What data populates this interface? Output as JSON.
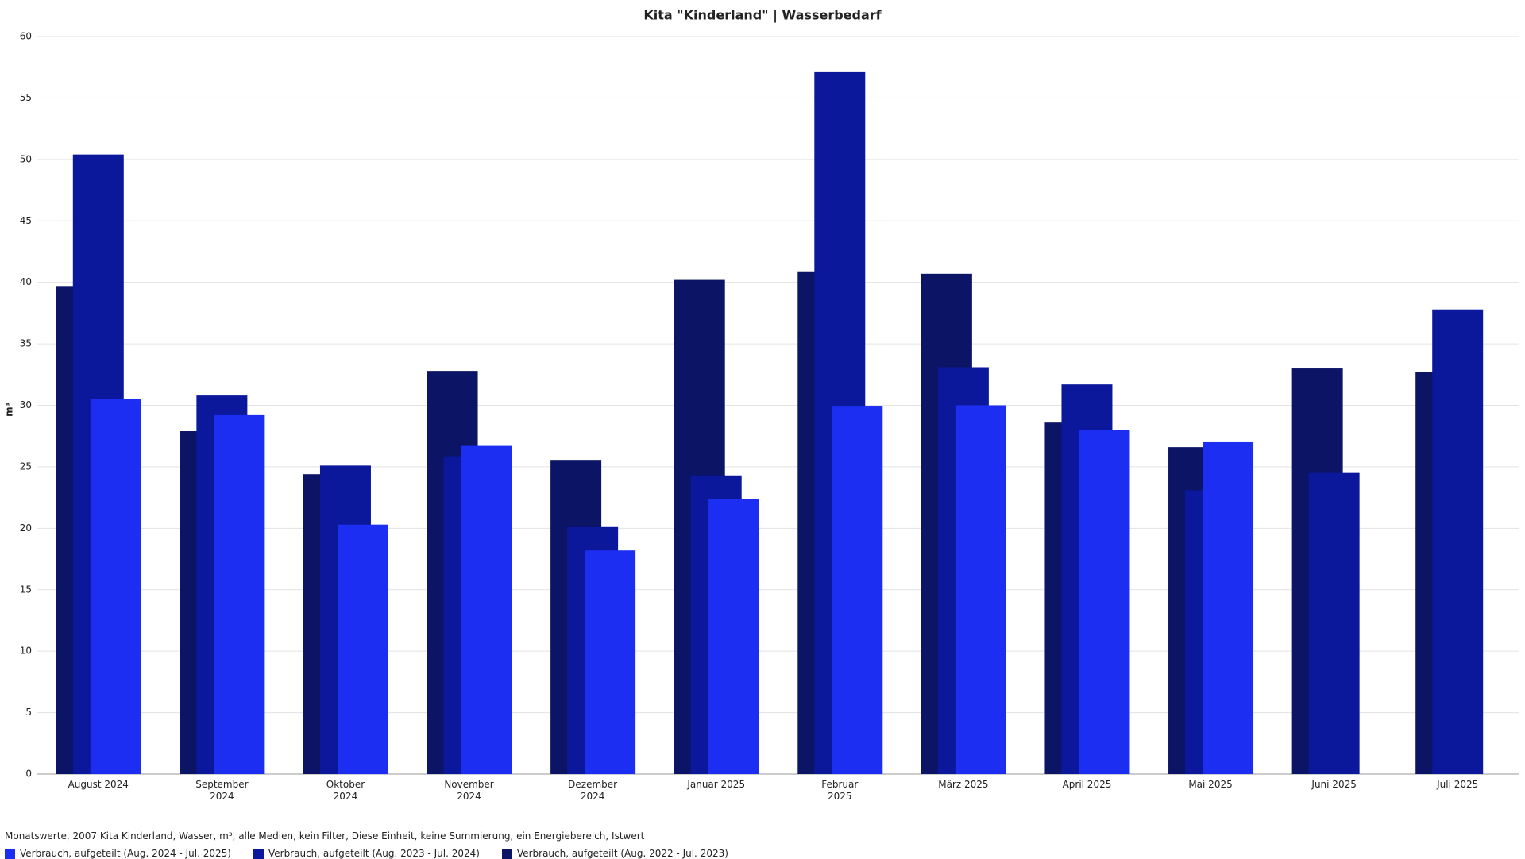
{
  "chart_data": {
    "type": "bar",
    "title": "Kita \"Kinderland\" | Wasserbedarf",
    "y_label": "m³",
    "note": "Monatswerte, 2007 Kita Kinderland, Wasser, m³, alle Medien, kein Filter, Diese Einheit, keine Summierung, ein Energiebereich, Istwert",
    "categories": [
      "August 2024",
      "September 2024",
      "Oktober 2024",
      "November 2024",
      "Dezember 2024",
      "Januar 2025",
      "Februar 2025",
      "März 2025",
      "April 2025",
      "Mai 2025",
      "Juni 2025",
      "Juli 2025"
    ],
    "series": [
      {
        "name": "Verbrauch, aufgeteilt (Aug. 2024 - Jul. 2025)",
        "color": "#1b2ef2",
        "values": [
          30.5,
          29.2,
          20.3,
          26.7,
          18.2,
          22.4,
          29.9,
          30.0,
          28.0,
          27.0,
          null,
          null
        ]
      },
      {
        "name": "Verbrauch, aufgeteilt (Aug. 2023 - Jul. 2024)",
        "color": "#0b189b",
        "values": [
          50.4,
          30.8,
          25.1,
          25.8,
          20.1,
          24.3,
          57.1,
          33.1,
          31.7,
          23.1,
          24.5,
          37.8
        ]
      },
      {
        "name": "Verbrauch, aufgeteilt (Aug. 2022 - Jul. 2023)",
        "color": "#0b1465",
        "values": [
          39.7,
          27.9,
          24.4,
          32.8,
          25.5,
          40.2,
          40.9,
          40.7,
          28.6,
          26.6,
          33.0,
          32.7
        ]
      }
    ],
    "ylim": [
      0,
      60
    ],
    "yticks": [
      0,
      5,
      10,
      15,
      20,
      25,
      30,
      35,
      40,
      45,
      50,
      55,
      60
    ],
    "grid": true
  }
}
